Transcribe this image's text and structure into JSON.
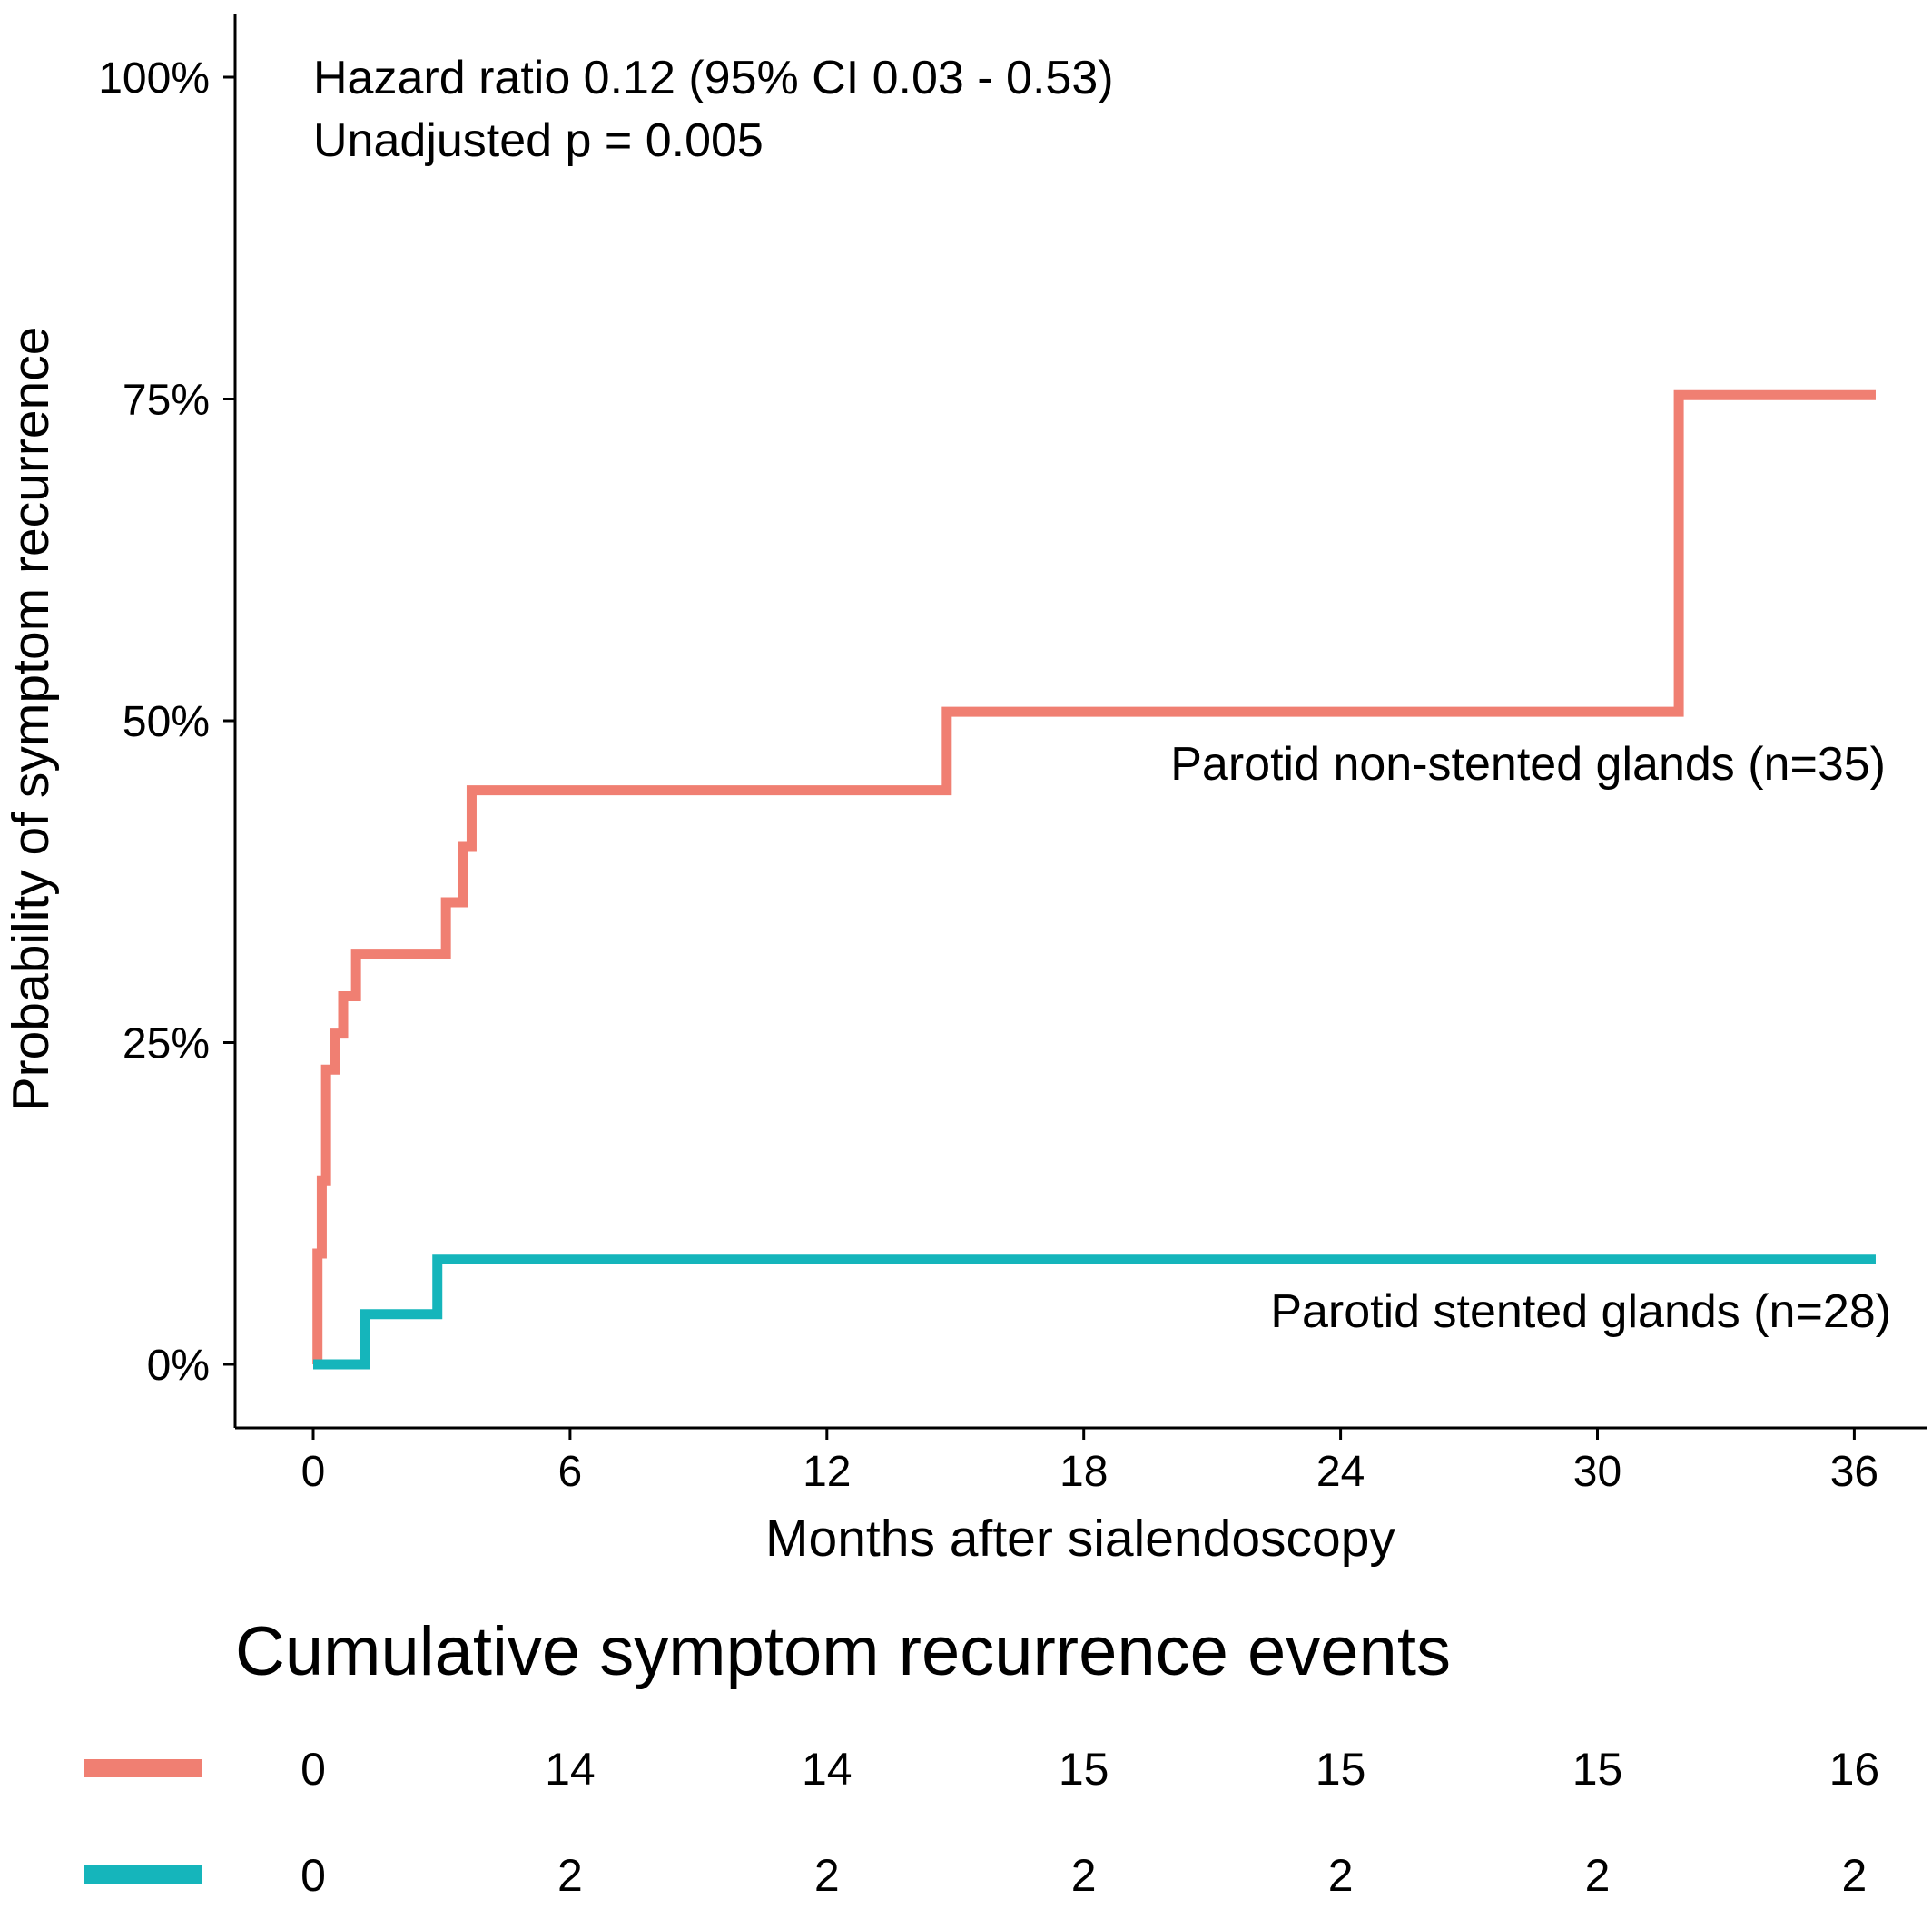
{
  "chart_data": {
    "type": "line",
    "subtype": "kaplan-meier cumulative incidence (step)",
    "xlabel": "Months after sialendoscopy",
    "ylabel": "Probability of symptom recurrence",
    "xlim": [
      0,
      36.5
    ],
    "ylim": [
      0,
      100
    ],
    "xticks": [
      0,
      6,
      12,
      18,
      24,
      30,
      36
    ],
    "yticks": [
      0,
      25,
      50,
      75,
      100
    ],
    "ytick_labels": [
      "0%",
      "25%",
      "50%",
      "75%",
      "100%"
    ],
    "grid": false,
    "annotations": [
      "Hazard ratio 0.12 (95% CI 0.03 - 0.53)",
      "Unadjusted p = 0.005"
    ],
    "series": [
      {
        "name": "Parotid non-stented glands (n=35)",
        "color": "#F07F72",
        "x": [
          0,
          0.1,
          0.2,
          0.3,
          0.5,
          0.7,
          1.0,
          3.1,
          3.5,
          3.7,
          14.8,
          31.9,
          36.5
        ],
        "y": [
          0,
          8.6,
          14.3,
          22.9,
          25.7,
          28.6,
          31.9,
          35.9,
          40.2,
          44.6,
          50.7,
          75.3,
          75.3
        ]
      },
      {
        "name": "Parotid stented glands (n=28)",
        "color": "#15B5BB",
        "x": [
          0,
          1.2,
          2.9,
          36.5
        ],
        "y": [
          0,
          3.9,
          8.2,
          8.2
        ]
      }
    ]
  },
  "risk_table": {
    "title": "Cumulative symptom recurrence events",
    "time_points": [
      0,
      6,
      12,
      18,
      24,
      30,
      36
    ],
    "rows": [
      {
        "color": "#F07F72",
        "values": [
          "0",
          "14",
          "14",
          "15",
          "15",
          "15",
          "16"
        ]
      },
      {
        "color": "#15B5BB",
        "values": [
          "0",
          "2",
          "2",
          "2",
          "2",
          "2",
          "2"
        ]
      }
    ]
  }
}
